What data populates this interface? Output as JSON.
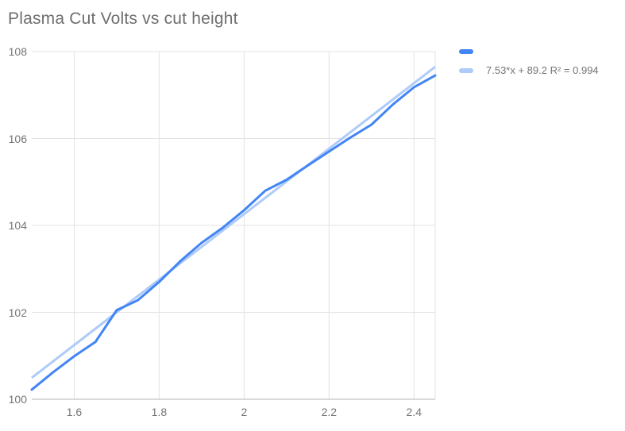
{
  "title": "Plasma Cut Volts vs cut height",
  "colors": {
    "background": "#FFFFFF",
    "series": "#4285F4",
    "trendline": "#AECBFA",
    "gridline": "#E3E3E3",
    "axis_line": "#B5B5B5",
    "title_text": "#6E6E6E",
    "tick_text": "#757575",
    "legend_text": "#757575"
  },
  "legend": {
    "position": "right",
    "items": [
      {
        "label": "",
        "color": "#4285F4"
      },
      {
        "label": "7.53*x + 89.2 R² = 0.994",
        "color": "#AECBFA"
      }
    ]
  },
  "chart_data": {
    "type": "line",
    "title": "Plasma Cut Volts vs cut height",
    "xlabel": "",
    "ylabel": "",
    "xlim": [
      1.5,
      2.45
    ],
    "ylim": [
      100,
      108
    ],
    "grid": true,
    "legend_position": "right",
    "x": [
      1.5,
      1.55,
      1.6,
      1.65,
      1.7,
      1.75,
      1.8,
      1.85,
      1.9,
      1.95,
      2.0,
      2.05,
      2.1,
      2.15,
      2.2,
      2.25,
      2.3,
      2.35,
      2.4,
      2.45
    ],
    "series": [
      {
        "name": "",
        "color": "#4285F4",
        "values": [
          100.22,
          100.62,
          100.99,
          101.32,
          102.05,
          102.28,
          102.7,
          103.18,
          103.6,
          103.95,
          104.35,
          104.8,
          105.05,
          105.38,
          105.7,
          106.02,
          106.32,
          106.78,
          107.18,
          107.45
        ]
      }
    ],
    "trendline": {
      "label": "7.53*x + 89.2 R² = 0.994",
      "slope": 7.53,
      "intercept": 89.2,
      "r2": 0.994,
      "color": "#AECBFA"
    },
    "xticks": {
      "values": [
        1.6,
        1.8,
        2.0,
        2.2,
        2.4
      ],
      "labels": [
        "1.6",
        "1.8",
        "2",
        "2.2",
        "2.4"
      ]
    },
    "yticks": {
      "values": [
        100,
        102,
        104,
        106,
        108
      ],
      "labels": [
        "100",
        "102",
        "104",
        "106",
        "108"
      ]
    }
  }
}
